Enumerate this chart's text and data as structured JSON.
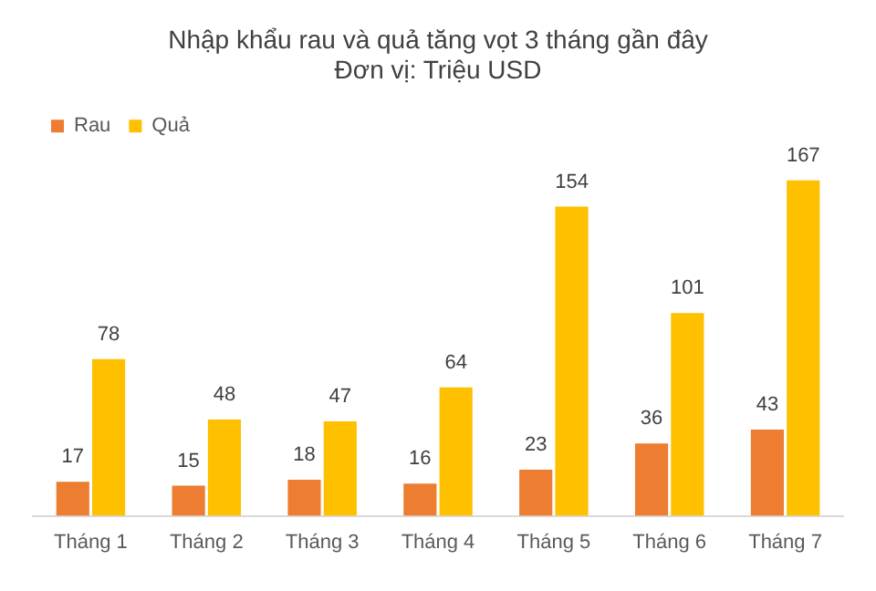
{
  "chart_data": {
    "type": "bar",
    "title": "Nhập khẩu rau và quả tăng vọt 3 tháng gần đây",
    "subtitle": "Đơn vị: Triệu USD",
    "categories": [
      "Tháng 1",
      "Tháng 2",
      "Tháng 3",
      "Tháng 4",
      "Tháng 5",
      "Tháng 6",
      "Tháng 7"
    ],
    "series": [
      {
        "name": "Rau",
        "color": "#ed7d31",
        "values": [
          17,
          15,
          18,
          16,
          23,
          36,
          43
        ]
      },
      {
        "name": "Quả",
        "color": "#ffc000",
        "values": [
          78,
          48,
          47,
          64,
          154,
          101,
          167
        ]
      }
    ],
    "data_labels": true,
    "legend": "top left",
    "grid": false
  }
}
